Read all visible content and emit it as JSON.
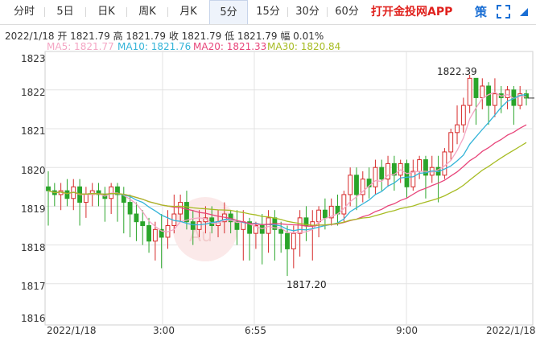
{
  "toolbar": {
    "tabs": [
      {
        "label": "分时",
        "active": false
      },
      {
        "label": "5日",
        "active": false
      },
      {
        "label": "日K",
        "active": false
      },
      {
        "label": "周K",
        "active": false
      },
      {
        "label": "月K",
        "active": false
      },
      {
        "label": "5分",
        "active": true
      },
      {
        "label": "15分",
        "active": false
      },
      {
        "label": "30分",
        "active": false
      },
      {
        "label": "60分",
        "active": false
      }
    ],
    "app_link": "打开金投网APP",
    "strategy": "策",
    "fullscreen_icon": "fullscreen-icon",
    "menu_icon": "triangle-menu-icon"
  },
  "info": "2022/1/18  开 1821.79  高 1821.79  收 1821.79  低 1821.79  幅 0.01%",
  "ma_legend": [
    {
      "text": "MA5: 1821.77",
      "color": "#f4a6c4"
    },
    {
      "text": "MA10: 1821.76",
      "color": "#34b4d8"
    },
    {
      "text": "MA20: 1821.33",
      "color": "#e8457a"
    },
    {
      "text": "MA30: 1820.84",
      "color": "#a7bc23"
    }
  ],
  "colors": {
    "up": "#d62a2a",
    "down": "#2aa52a",
    "grid": "#e3e3e3"
  },
  "chart_data": {
    "type": "candlestick",
    "ylim": [
      1816,
      1823.3
    ],
    "y_ticks": [
      "1823",
      "1822",
      "1821",
      "1820",
      "1819",
      "1818",
      "1817",
      "1816"
    ],
    "x_ticks": [
      "2022/1/18",
      "3:00",
      "6:55",
      "9:00",
      "2022/1/18"
    ],
    "annotations": {
      "high": "1822.39",
      "low": "1817.20"
    },
    "series_names": [
      "MA5",
      "MA10",
      "MA20",
      "MA30"
    ],
    "candles": [
      [
        1819.5,
        1819.4,
        1819.9,
        1818.5
      ],
      [
        1819.4,
        1819.3,
        1819.6,
        1819.0
      ],
      [
        1819.3,
        1819.4,
        1819.6,
        1818.9
      ],
      [
        1819.4,
        1819.2,
        1819.7,
        1819.0
      ],
      [
        1819.2,
        1819.5,
        1819.7,
        1818.9
      ],
      [
        1819.5,
        1819.1,
        1819.7,
        1818.5
      ],
      [
        1819.1,
        1819.3,
        1819.5,
        1818.7
      ],
      [
        1819.3,
        1819.4,
        1819.6,
        1819.0
      ],
      [
        1819.4,
        1819.3,
        1819.6,
        1819.0
      ],
      [
        1819.3,
        1819.2,
        1819.5,
        1818.6
      ],
      [
        1819.2,
        1819.5,
        1819.6,
        1818.8
      ],
      [
        1819.5,
        1819.3,
        1819.6,
        1818.6
      ],
      [
        1819.3,
        1819.1,
        1819.5,
        1818.3
      ],
      [
        1819.1,
        1818.8,
        1819.3,
        1818.2
      ],
      [
        1818.8,
        1818.6,
        1819.1,
        1818.1
      ],
      [
        1818.6,
        1818.5,
        1818.9,
        1818.0
      ],
      [
        1818.5,
        1818.1,
        1818.7,
        1817.8
      ],
      [
        1818.1,
        1818.4,
        1818.6,
        1817.6
      ],
      [
        1818.4,
        1818.2,
        1818.8,
        1817.4
      ],
      [
        1818.2,
        1818.5,
        1818.9,
        1817.9
      ],
      [
        1818.5,
        1818.8,
        1819.3,
        1818.3
      ],
      [
        1818.8,
        1819.1,
        1819.3,
        1818.6
      ],
      [
        1819.1,
        1818.6,
        1819.4,
        1818.4
      ],
      [
        1818.6,
        1818.4,
        1818.9,
        1818.0
      ],
      [
        1818.4,
        1818.6,
        1818.9,
        1818.2
      ],
      [
        1818.6,
        1818.7,
        1819.0,
        1818.3
      ],
      [
        1818.7,
        1818.5,
        1819.0,
        1818.3
      ],
      [
        1818.5,
        1818.6,
        1818.9,
        1818.2
      ],
      [
        1818.6,
        1818.8,
        1819.1,
        1818.3
      ],
      [
        1818.8,
        1818.6,
        1818.9,
        1818.3
      ],
      [
        1818.6,
        1818.4,
        1818.9,
        1818.0
      ],
      [
        1818.4,
        1818.6,
        1818.9,
        1817.6
      ],
      [
        1818.6,
        1818.3,
        1818.7,
        1817.6
      ],
      [
        1818.3,
        1818.5,
        1818.6,
        1817.9
      ],
      [
        1818.5,
        1818.3,
        1818.8,
        1817.5
      ],
      [
        1818.3,
        1818.7,
        1818.9,
        1817.8
      ],
      [
        1818.7,
        1818.4,
        1818.9,
        1817.6
      ],
      [
        1818.4,
        1818.3,
        1818.6,
        1817.8
      ],
      [
        1818.3,
        1817.9,
        1818.5,
        1817.2
      ],
      [
        1817.9,
        1818.3,
        1818.5,
        1817.4
      ],
      [
        1818.3,
        1818.7,
        1818.9,
        1817.7
      ],
      [
        1818.7,
        1818.5,
        1819.0,
        1818.1
      ],
      [
        1818.5,
        1818.6,
        1818.9,
        1817.6
      ],
      [
        1818.6,
        1818.9,
        1819.0,
        1818.2
      ],
      [
        1818.9,
        1818.7,
        1819.2,
        1818.4
      ],
      [
        1818.7,
        1819.0,
        1819.2,
        1818.5
      ],
      [
        1819.0,
        1818.8,
        1819.3,
        1818.5
      ],
      [
        1818.8,
        1819.3,
        1819.4,
        1818.6
      ],
      [
        1819.3,
        1819.8,
        1820.0,
        1819.0
      ],
      [
        1819.8,
        1819.3,
        1820.0,
        1818.9
      ],
      [
        1819.3,
        1819.7,
        1819.9,
        1819.1
      ],
      [
        1819.7,
        1819.5,
        1820.0,
        1819.2
      ],
      [
        1819.5,
        1820.0,
        1820.2,
        1819.3
      ],
      [
        1820.0,
        1819.7,
        1820.2,
        1819.4
      ],
      [
        1819.7,
        1820.1,
        1820.3,
        1819.5
      ],
      [
        1820.1,
        1819.8,
        1820.3,
        1819.4
      ],
      [
        1819.8,
        1820.1,
        1820.2,
        1819.6
      ],
      [
        1820.1,
        1819.5,
        1820.2,
        1819.2
      ],
      [
        1819.5,
        1819.9,
        1820.2,
        1819.4
      ],
      [
        1819.9,
        1820.2,
        1820.3,
        1819.7
      ],
      [
        1820.2,
        1819.8,
        1820.3,
        1819.2
      ],
      [
        1819.8,
        1820.0,
        1820.3,
        1819.6
      ],
      [
        1820.0,
        1819.8,
        1820.3,
        1819.1
      ],
      [
        1819.8,
        1820.4,
        1820.5,
        1819.7
      ],
      [
        1820.4,
        1820.9,
        1821.0,
        1820.2
      ],
      [
        1820.9,
        1821.1,
        1821.6,
        1820.6
      ],
      [
        1821.1,
        1821.6,
        1821.8,
        1820.9
      ],
      [
        1821.6,
        1822.3,
        1822.39,
        1821.4
      ],
      [
        1822.3,
        1821.8,
        1822.3,
        1821.1
      ],
      [
        1821.8,
        1822.1,
        1822.3,
        1821.5
      ],
      [
        1822.1,
        1821.6,
        1822.2,
        1821.1
      ],
      [
        1821.6,
        1821.9,
        1822.3,
        1821.3
      ],
      [
        1821.9,
        1821.8,
        1822.1,
        1821.4
      ],
      [
        1821.8,
        1822.0,
        1822.1,
        1821.5
      ],
      [
        1822.0,
        1821.6,
        1822.1,
        1821.1
      ],
      [
        1821.6,
        1821.9,
        1822.1,
        1821.5
      ],
      [
        1821.9,
        1821.79,
        1822.0,
        1821.6
      ]
    ]
  }
}
